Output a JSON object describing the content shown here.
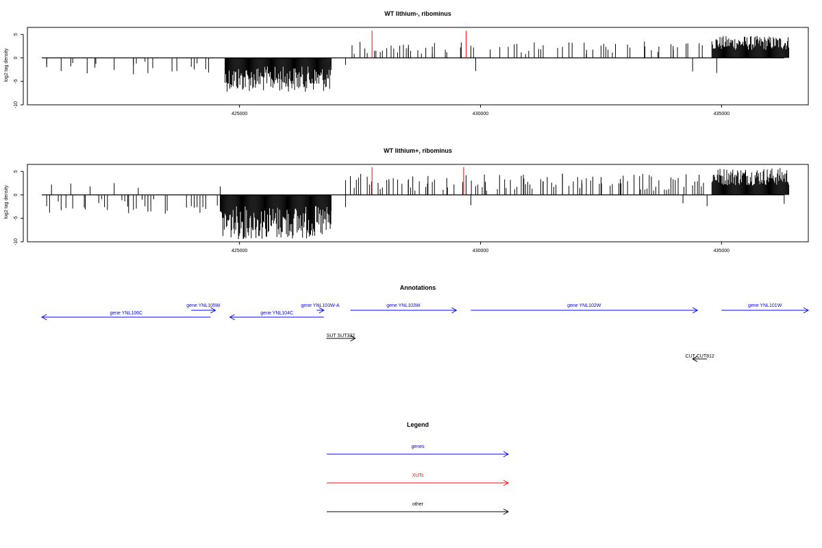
{
  "colors": {
    "gene": "#0000ff",
    "xut": "#ff0000",
    "other": "#000000",
    "bar": "#000000",
    "highlight": "#ff0000"
  },
  "chart_data": [
    {
      "type": "bar",
      "title": "WT lithium-, ribominus",
      "ylabel": "log2 tag density",
      "xlim": [
        420600,
        436800
      ],
      "ylim": [
        -10,
        6.5
      ],
      "yticks": [
        -10,
        -5,
        0,
        5
      ],
      "xticks": [
        425000,
        430000,
        435000
      ],
      "series": [
        {
          "bars_pos": [
            [
              427500,
              3.4
            ],
            [
              427600,
              2.0
            ],
            [
              427800,
              1.5
            ],
            [
              428200,
              2.0
            ],
            [
              428400,
              2.8
            ],
            [
              428500,
              2.2
            ],
            [
              428700,
              1.6
            ],
            [
              429000,
              2.4
            ],
            [
              429300,
              1.2
            ],
            [
              429600,
              3.3
            ],
            [
              429800,
              2.6
            ],
            [
              430200,
              1.8
            ],
            [
              430400,
              2.3
            ],
            [
              430700,
              2.9
            ],
            [
              431000,
              1.5
            ],
            [
              431300,
              2.7
            ],
            [
              431600,
              2.1
            ],
            [
              431900,
              3.2
            ],
            [
              432200,
              1.7
            ],
            [
              432500,
              2.6
            ],
            [
              432800,
              3.0
            ],
            [
              433100,
              2.2
            ],
            [
              433400,
              3.5
            ],
            [
              433700,
              2.4
            ],
            [
              434000,
              1.8
            ],
            [
              434300,
              3.1
            ],
            [
              434600,
              2.7
            ]
          ],
          "bars_neg": [
            [
              421000,
              -2.0
            ],
            [
              421500,
              -1.8
            ],
            [
              422000,
              -2.1
            ],
            [
              422400,
              -2.6
            ],
            [
              422800,
              -3.5
            ],
            [
              423200,
              -2.2
            ],
            [
              423600,
              -2.9
            ],
            [
              424000,
              -1.9
            ],
            [
              424300,
              -2.4
            ],
            [
              426900,
              -2.6
            ],
            [
              427200,
              -1.5
            ],
            [
              429900,
              -2.8
            ],
            [
              434400,
              -2.9
            ],
            [
              434900,
              -3.2
            ]
          ],
          "dense_neg": {
            "x_range": [
              424700,
              426900
            ],
            "min": -7.2
          },
          "dense_pos": {
            "x_range": [
              434800,
              436400
            ],
            "max": 4.7
          },
          "highlights": [
            [
              427750,
              5.8
            ],
            [
              429700,
              5.8
            ]
          ]
        }
      ]
    },
    {
      "type": "bar",
      "title": "WT lithium+, ribominus",
      "ylabel": "log2 tag density",
      "xlim": [
        420600,
        436800
      ],
      "ylim": [
        -10,
        6.5
      ],
      "yticks": [
        -10,
        -5,
        0,
        5
      ],
      "xticks": [
        425000,
        430000,
        435000
      ],
      "series": [
        {
          "bars_pos": [
            [
              421100,
              2.2
            ],
            [
              421500,
              2.4
            ],
            [
              421900,
              1.8
            ],
            [
              422400,
              2.5
            ],
            [
              422900,
              1.5
            ],
            [
              424600,
              1.8
            ],
            [
              427300,
              4.0
            ],
            [
              427700,
              2.2
            ],
            [
              428100,
              2.9
            ],
            [
              428500,
              3.1
            ],
            [
              428900,
              2.4
            ],
            [
              429300,
              3.6
            ],
            [
              429700,
              4.2
            ],
            [
              430100,
              2.8
            ],
            [
              430500,
              3.3
            ],
            [
              430900,
              3.5
            ],
            [
              431300,
              2.9
            ],
            [
              431700,
              4.5
            ],
            [
              432100,
              3.2
            ],
            [
              432500,
              3.8
            ],
            [
              432900,
              3.4
            ],
            [
              433300,
              4.0
            ],
            [
              433700,
              3.1
            ],
            [
              434100,
              3.6
            ],
            [
              434500,
              2.9
            ]
          ],
          "bars_neg": [
            [
              421000,
              -2.4
            ],
            [
              421400,
              -2.8
            ],
            [
              421800,
              -3.1
            ],
            [
              422200,
              -2.6
            ],
            [
              422700,
              -3.9
            ],
            [
              423100,
              -3.0
            ],
            [
              423500,
              -3.4
            ],
            [
              423900,
              -2.7
            ],
            [
              424300,
              -3.0
            ],
            [
              426900,
              -3.4
            ],
            [
              427200,
              -2.6
            ],
            [
              429800,
              -2.2
            ],
            [
              434200,
              -1.8
            ],
            [
              434700,
              -2.4
            ],
            [
              436300,
              -1.9
            ]
          ],
          "dense_neg": {
            "x_range": [
              424600,
              426900
            ],
            "min": -9.5
          },
          "dense_pos": {
            "x_range": [
              434800,
              436400
            ],
            "max": 5.8
          },
          "highlights": [
            [
              427750,
              5.9
            ],
            [
              429650,
              5.9
            ]
          ]
        }
      ]
    }
  ],
  "annotations": {
    "title": "Annotations",
    "xlim": [
      420600,
      436800
    ],
    "features": [
      {
        "label": "gene YNL106C",
        "start": 420900,
        "end": 424400,
        "strand": "-",
        "kind": "gene"
      },
      {
        "label": "gene YNL105W",
        "start": 424000,
        "end": 424500,
        "strand": "+",
        "kind": "gene"
      },
      {
        "label": "gene YNL104C",
        "start": 424800,
        "end": 426750,
        "strand": "-",
        "kind": "gene"
      },
      {
        "label": "gene YNL103W-A",
        "start": 426600,
        "end": 426750,
        "strand": "+",
        "kind": "gene"
      },
      {
        "label": "gene YNL103W",
        "start": 427300,
        "end": 429500,
        "strand": "+",
        "kind": "gene"
      },
      {
        "label": "gene YNL102W",
        "start": 429800,
        "end": 434500,
        "strand": "+",
        "kind": "gene"
      },
      {
        "label": "gene YNL101W",
        "start": 435000,
        "end": 436800,
        "strand": "+",
        "kind": "gene"
      },
      {
        "label": "SUT SUT332",
        "start": 426800,
        "end": 427400,
        "strand": "+",
        "kind": "other"
      },
      {
        "label": "CUT CUT812",
        "start": 434400,
        "end": 434700,
        "strand": "-",
        "kind": "other"
      }
    ]
  },
  "legend": {
    "title": "Legend",
    "items": [
      {
        "label": "genes",
        "color": "#0000ff"
      },
      {
        "label": "XUTs",
        "color": "#ff0000"
      },
      {
        "label": "other",
        "color": "#000000"
      }
    ]
  }
}
